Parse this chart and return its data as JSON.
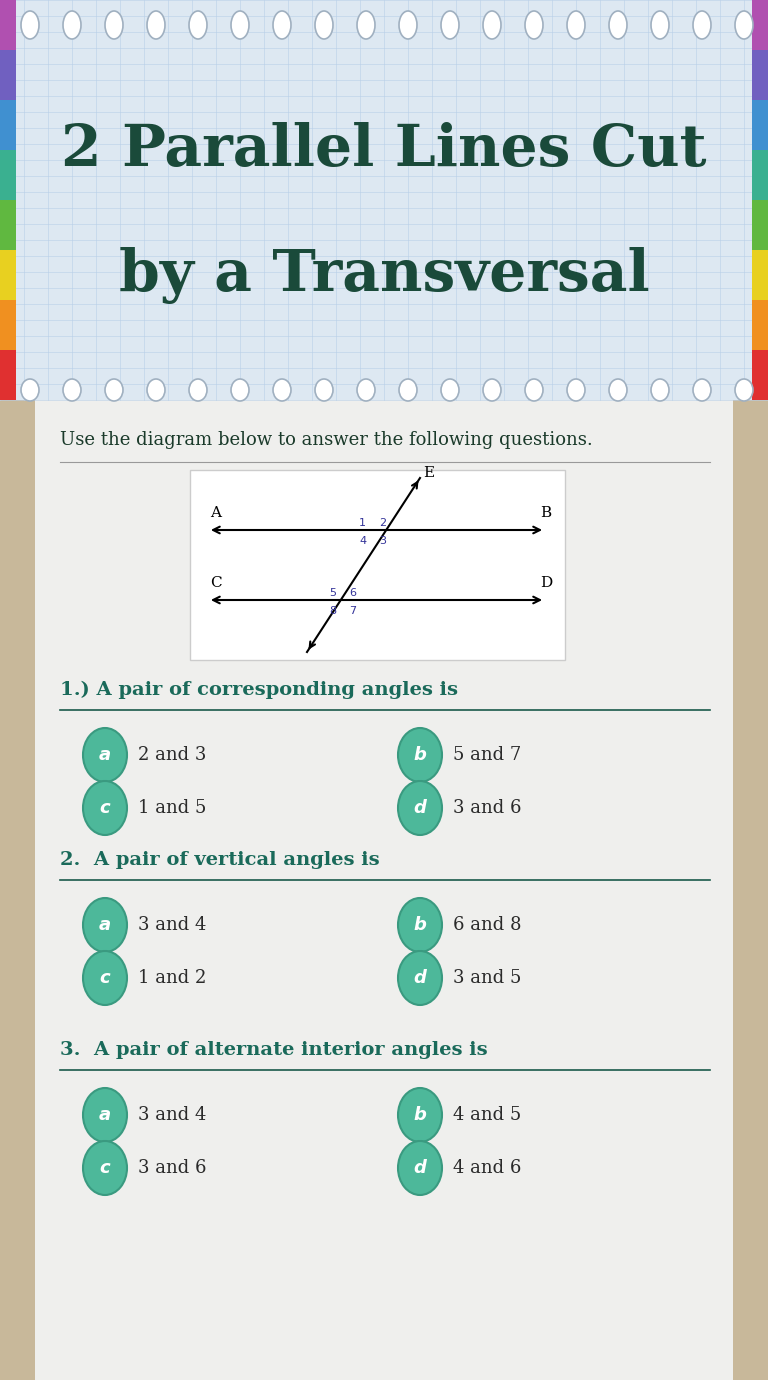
{
  "title_line1": "2 Parallel Lines Cut",
  "title_line2": "by a Transversal",
  "title_color": "#1a4a3a",
  "header_bg": "#dde8f2",
  "header_grid_color": "#b8cfe8",
  "body_bg": "#c8b89a",
  "content_bg": "#efefed",
  "instruction": "Use the diagram below to answer the following questions.",
  "instruction_color": "#1a3a2a",
  "question1": "1.) A pair of corresponding angles is",
  "question2": "2.  A pair of vertical angles is",
  "question3": "3.  A pair of alternate interior angles is",
  "question_color": "#1a6a5a",
  "separator_color": "#1a5a4a",
  "circle_color": "#4db89a",
  "circle_dark": "#3a9a80",
  "text_color": "#2a2a2a",
  "answers_q1": [
    "2 and 3",
    "5 and 7",
    "1 and 5",
    "3 and 6"
  ],
  "answers_q2": [
    "3 and 4",
    "6 and 8",
    "1 and 2",
    "3 and 5"
  ],
  "answers_q3": [
    "3 and 4",
    "4 and 5",
    "3 and 6",
    "4 and 6"
  ],
  "labels_abcd": [
    "a",
    "b",
    "c",
    "d"
  ],
  "ribbon_colors": [
    "#e03030",
    "#f09020",
    "#e8d020",
    "#60b840",
    "#3ab090",
    "#4090d0",
    "#7060c0",
    "#b050b0"
  ]
}
